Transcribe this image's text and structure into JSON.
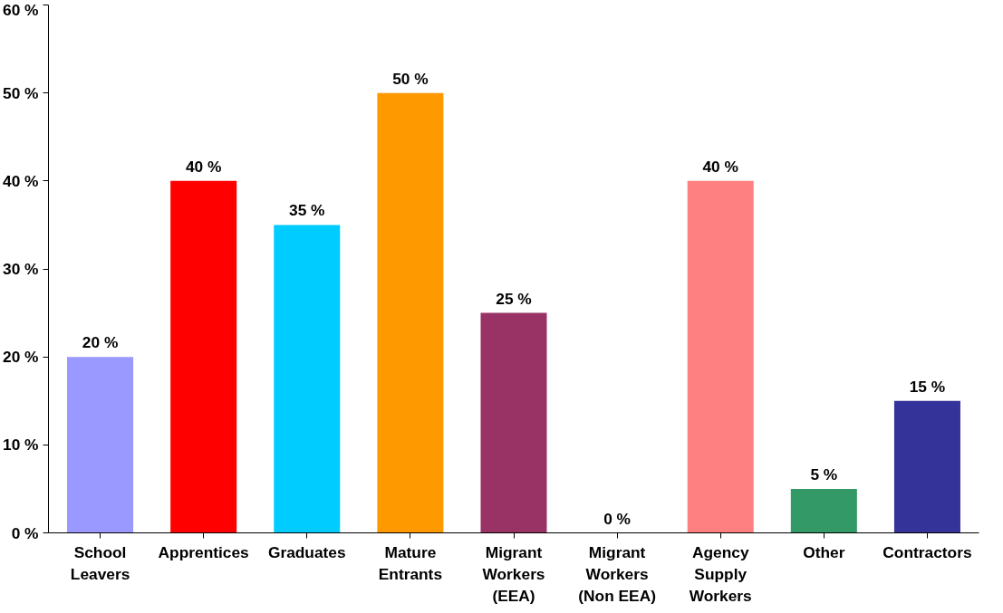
{
  "chart_data": {
    "type": "bar",
    "categories": [
      "School Leavers",
      "Apprentices",
      "Graduates",
      "Mature Entrants",
      "Migrant Workers (EEA)",
      "Migrant Workers (Non EEA)",
      "Agency Supply Workers",
      "Other",
      "Contractors"
    ],
    "values": [
      20,
      40,
      35,
      50,
      25,
      0,
      40,
      5,
      15
    ],
    "colors": [
      "#9999ff",
      "#ff0000",
      "#00ccff",
      "#ff9900",
      "#993366",
      "#ffffff",
      "#ff8080",
      "#339966",
      "#333399"
    ],
    "value_labels": [
      "20 %",
      "40 %",
      "35 %",
      "50 %",
      "25 %",
      "0 %",
      "40 %",
      "5 %",
      "15 %"
    ],
    "ylim": [
      0,
      60
    ],
    "yticks": [
      {
        "value": 0,
        "label": "0 %"
      },
      {
        "value": 10,
        "label": "10 %"
      },
      {
        "value": 20,
        "label": "20 %"
      },
      {
        "value": 30,
        "label": "30 %"
      },
      {
        "value": 40,
        "label": "40 %"
      },
      {
        "value": 50,
        "label": "50 %"
      },
      {
        "value": 60,
        "label": "60 %"
      }
    ],
    "grid": false
  }
}
